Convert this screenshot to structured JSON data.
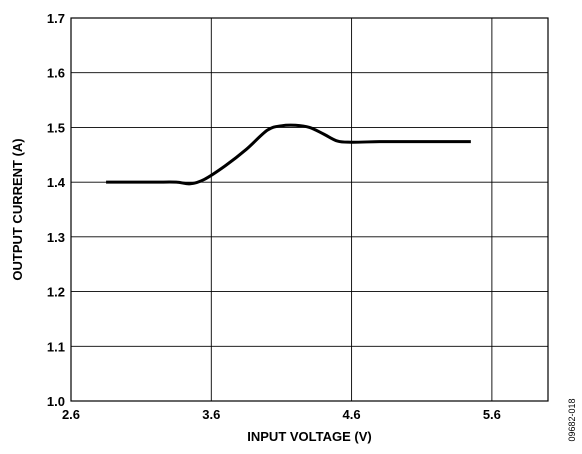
{
  "figure_id": "09682-018",
  "chart_data": {
    "type": "line",
    "xlabel": "INPUT VOLTAGE (V)",
    "ylabel": "OUTPUT CURRENT (A)",
    "xlim": [
      2.6,
      6.0
    ],
    "ylim": [
      1.0,
      1.7
    ],
    "xticks": [
      2.6,
      3.6,
      4.6,
      5.6
    ],
    "yticks": [
      1.0,
      1.1,
      1.2,
      1.3,
      1.4,
      1.5,
      1.6,
      1.7
    ],
    "xtick_labels": [
      "2.6",
      "3.6",
      "4.6",
      "5.6"
    ],
    "ytick_labels": [
      "1.0",
      "1.1",
      "1.2",
      "1.3",
      "1.4",
      "1.5",
      "1.6",
      "1.7"
    ],
    "grid": true,
    "series": [
      {
        "color": "#000000",
        "x": [
          2.85,
          3.0,
          3.2,
          3.35,
          3.45,
          3.55,
          3.7,
          3.85,
          4.0,
          4.1,
          4.2,
          4.3,
          4.4,
          4.5,
          4.6,
          4.8,
          5.0,
          5.2,
          5.45
        ],
        "y": [
          1.4,
          1.4,
          1.4,
          1.4,
          1.397,
          1.405,
          1.43,
          1.46,
          1.495,
          1.503,
          1.504,
          1.5,
          1.488,
          1.475,
          1.473,
          1.474,
          1.474,
          1.474,
          1.474
        ]
      }
    ]
  }
}
